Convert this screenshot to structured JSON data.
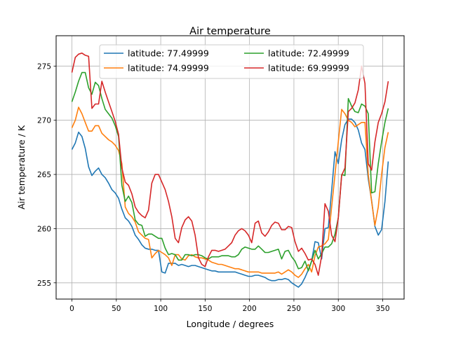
{
  "chart_data": {
    "type": "line",
    "title": "Air temperature",
    "xlabel": "Longitude / degrees",
    "ylabel": "Air temperature / K",
    "xlim": [
      -17.8,
      374.1
    ],
    "ylim": [
      253.5,
      277.8
    ],
    "xticks": [
      0,
      50,
      100,
      150,
      200,
      250,
      300,
      350
    ],
    "yticks": [
      255,
      260,
      265,
      270,
      275
    ],
    "grid": true,
    "legend_placement": "upper center",
    "legend_columns": 2,
    "x_start": 0,
    "x_step": 3.75,
    "series": [
      {
        "name": "latitude: 77.49999",
        "color": "#1f77b4",
        "values": [
          267.3,
          267.9,
          268.9,
          268.5,
          267.4,
          265.7,
          264.9,
          265.3,
          265.6,
          265.0,
          264.7,
          264.2,
          263.6,
          263.3,
          262.8,
          261.8,
          261.0,
          260.7,
          260.2,
          259.4,
          259.0,
          258.5,
          258.2,
          258.1,
          258.1,
          258.0,
          258.0,
          256.0,
          255.9,
          256.8,
          256.8,
          256.8,
          256.6,
          256.7,
          256.6,
          256.5,
          256.6,
          256.6,
          256.5,
          256.4,
          256.3,
          256.2,
          256.1,
          256.1,
          256.0,
          256.0,
          256.0,
          256.0,
          256.0,
          256.0,
          255.9,
          255.8,
          255.7,
          255.6,
          255.6,
          255.7,
          255.7,
          255.6,
          255.5,
          255.3,
          255.2,
          255.2,
          255.3,
          255.3,
          255.4,
          255.3,
          255.0,
          254.8,
          254.6,
          254.9,
          255.5,
          256.2,
          257.0,
          258.8,
          258.7,
          257.2,
          260.0,
          260.1,
          263.5,
          267.1,
          266.0,
          268.2,
          269.6,
          270.1,
          270.1,
          269.8,
          269.1,
          267.9,
          267.3,
          264.6,
          262.6,
          260.2,
          259.4,
          259.9,
          262.5,
          266.2
        ]
      },
      {
        "name": "latitude: 74.99999",
        "color": "#ff7f0e",
        "values": [
          269.3,
          270.0,
          271.2,
          270.6,
          269.8,
          269.0,
          269.0,
          269.5,
          269.5,
          268.8,
          268.5,
          268.2,
          268.0,
          267.7,
          267.2,
          266.0,
          262.0,
          261.4,
          261.1,
          260.6,
          259.7,
          259.4,
          259.1,
          259.0,
          257.3,
          257.7,
          258.0,
          257.8,
          257.6,
          257.3,
          256.6,
          257.6,
          257.6,
          257.2,
          257.1,
          257.5,
          257.6,
          257.4,
          257.3,
          257.3,
          257.2,
          257.1,
          256.9,
          256.8,
          256.7,
          256.7,
          256.6,
          256.5,
          256.4,
          256.3,
          256.3,
          256.2,
          256.1,
          256.0,
          256.0,
          256.0,
          256.0,
          255.9,
          255.9,
          255.9,
          255.9,
          255.9,
          256.0,
          255.8,
          256.0,
          256.2,
          256.0,
          255.7,
          255.5,
          255.8,
          256.3,
          256.7,
          256.0,
          257.5,
          258.3,
          258.4,
          258.6,
          259.0,
          262.0,
          265.0,
          268.0,
          271.0,
          270.6,
          270.0,
          269.8,
          269.4,
          269.6,
          269.8,
          269.8,
          265.0,
          262.5,
          260.3,
          262.0,
          265.0,
          267.5,
          268.9
        ]
      },
      {
        "name": "latitude: 72.49999",
        "color": "#2ca02c",
        "values": [
          271.7,
          272.6,
          273.6,
          274.4,
          274.4,
          273.0,
          272.4,
          273.5,
          273.2,
          272.0,
          271.0,
          270.6,
          270.2,
          269.5,
          268.5,
          264.0,
          262.5,
          263.0,
          262.4,
          260.8,
          260.4,
          260.3,
          259.3,
          259.5,
          259.5,
          259.3,
          259.1,
          259.1,
          258.2,
          257.6,
          257.7,
          257.6,
          257.1,
          257.1,
          257.6,
          257.6,
          257.5,
          257.6,
          257.6,
          257.5,
          257.3,
          257.2,
          257.4,
          257.4,
          257.4,
          257.5,
          257.5,
          257.5,
          257.4,
          257.4,
          257.6,
          258.1,
          258.3,
          258.2,
          258.1,
          258.1,
          258.4,
          258.1,
          257.8,
          257.8,
          257.9,
          258.0,
          258.1,
          257.2,
          257.9,
          258.0,
          257.4,
          257.0,
          256.3,
          256.4,
          257.0,
          256.1,
          257.0,
          258.0,
          257.2,
          257.7,
          258.3,
          258.3,
          258.6,
          259.5,
          261.0,
          265.0,
          264.9,
          272.0,
          271.3,
          270.8,
          270.7,
          271.5,
          271.3,
          270.6,
          263.3,
          263.4,
          266.0,
          268.0,
          269.8,
          271.1
        ]
      },
      {
        "name": "latitude: 69.99999",
        "color": "#d62728",
        "values": [
          274.4,
          275.8,
          276.1,
          276.2,
          276.0,
          275.9,
          271.1,
          271.5,
          271.5,
          273.6,
          272.6,
          271.7,
          270.8,
          269.9,
          268.7,
          265.6,
          264.3,
          264.0,
          263.2,
          262.0,
          261.5,
          261.2,
          261.0,
          261.7,
          264.2,
          265.0,
          265.0,
          264.3,
          263.6,
          262.5,
          261.1,
          259.1,
          258.7,
          260.1,
          260.8,
          261.1,
          260.7,
          259.4,
          257.3,
          256.7,
          256.5,
          257.4,
          258.0,
          258.0,
          257.9,
          258.0,
          258.1,
          258.4,
          258.7,
          259.4,
          259.8,
          260.0,
          259.8,
          259.4,
          258.7,
          260.5,
          260.7,
          259.6,
          259.3,
          259.7,
          260.3,
          260.6,
          260.5,
          259.9,
          259.9,
          260.2,
          260.1,
          258.8,
          257.9,
          258.2,
          257.7,
          257.1,
          257.2,
          256.7,
          255.7,
          257.5,
          262.3,
          261.6,
          259.4,
          258.8,
          261.0,
          264.9,
          265.6,
          270.8,
          271.1,
          271.6,
          272.8,
          275.0,
          273.4,
          266.0,
          265.4,
          268.0,
          269.8,
          270.6,
          271.7,
          273.6
        ]
      }
    ]
  }
}
